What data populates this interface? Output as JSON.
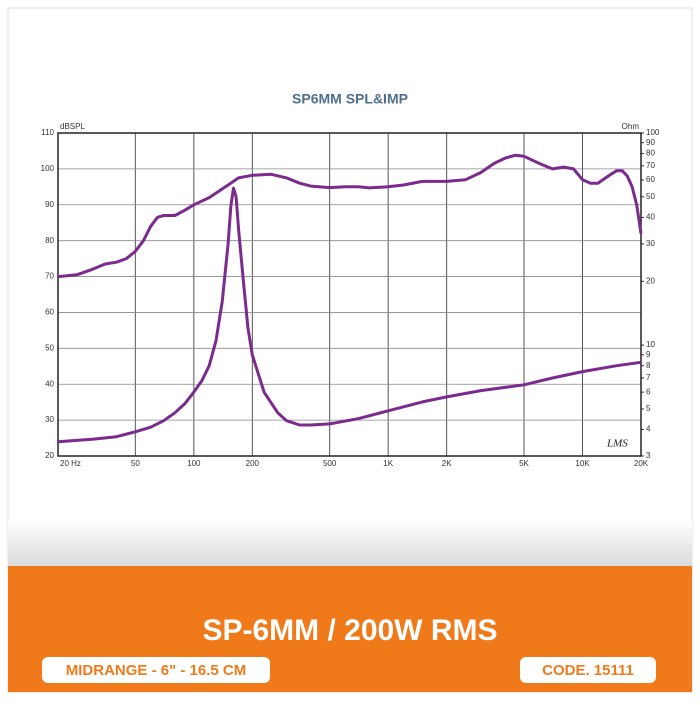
{
  "chart_data": {
    "type": "line",
    "title": "SP6MM SPL&IMP",
    "ylabel": "dBSPL",
    "y2label": "Ohm",
    "annotation": "LMS",
    "xscale": "log",
    "y2scale": "log",
    "grid": true,
    "xlim": [
      20,
      20000
    ],
    "xticks": [
      {
        "value": 20,
        "label": "20 Hz"
      },
      50,
      100,
      200,
      500,
      {
        "value": 1000,
        "label": "1K"
      },
      {
        "value": 2000,
        "label": "2K"
      },
      {
        "value": 5000,
        "label": "5K"
      },
      {
        "value": 10000,
        "label": "10K"
      },
      {
        "value": 20000,
        "label": "20K"
      }
    ],
    "ylim": [
      20,
      110
    ],
    "yticks": [
      20,
      30,
      40,
      50,
      60,
      70,
      80,
      90,
      100,
      110
    ],
    "y2lim": [
      3,
      100
    ],
    "y2ticks": [
      3,
      4,
      5,
      6,
      7,
      8,
      9,
      10,
      20,
      30,
      40,
      50,
      60,
      70,
      80,
      90,
      100
    ],
    "series": [
      {
        "name": "SPL",
        "color": "#7b2a8e",
        "axis": "y",
        "x": [
          20,
          25,
          30,
          35,
          40,
          45,
          50,
          55,
          60,
          65,
          70,
          80,
          90,
          100,
          120,
          150,
          170,
          200,
          250,
          300,
          350,
          400,
          500,
          600,
          700,
          800,
          1000,
          1200,
          1500,
          2000,
          2500,
          3000,
          3500,
          4000,
          4500,
          5000,
          6000,
          7000,
          8000,
          9000,
          10000,
          11000,
          12000,
          14000,
          15000,
          16000,
          17000,
          18000,
          19000,
          20000
        ],
        "values": [
          70,
          70.5,
          72,
          73.5,
          74,
          75,
          77,
          80,
          84,
          86.5,
          87,
          87,
          88.5,
          90,
          92,
          95.5,
          97.5,
          98.2,
          98.5,
          97.5,
          96,
          95.2,
          94.8,
          95,
          95,
          94.7,
          95,
          95.5,
          96.5,
          96.5,
          97,
          99,
          101.5,
          103,
          103.8,
          103.5,
          101.5,
          100,
          100.5,
          100,
          97,
          96,
          96,
          98.5,
          99.5,
          99.5,
          98,
          95,
          90,
          82
        ]
      },
      {
        "name": "Impedance",
        "color": "#7b2a8e",
        "axis": "y2",
        "x": [
          20,
          30,
          40,
          50,
          60,
          70,
          80,
          90,
          100,
          110,
          120,
          130,
          140,
          150,
          155,
          160,
          165,
          170,
          180,
          190,
          200,
          230,
          270,
          300,
          350,
          400,
          500,
          700,
          1000,
          1500,
          2000,
          3000,
          5000,
          7000,
          10000,
          15000,
          20000
        ],
        "values": [
          3.5,
          3.6,
          3.7,
          3.9,
          4.1,
          4.4,
          4.8,
          5.3,
          6.0,
          6.8,
          8,
          10.5,
          16,
          30,
          45,
          55,
          50,
          35,
          20,
          12,
          9,
          6,
          4.8,
          4.4,
          4.2,
          4.2,
          4.25,
          4.5,
          4.9,
          5.4,
          5.7,
          6.1,
          6.5,
          7.0,
          7.5,
          8.0,
          8.3
        ]
      }
    ]
  },
  "banner": {
    "title": "SP-6MM / 200W RMS",
    "subtitle": "MIDRANGE - 6\" - 16.5 CM",
    "code": "CODE. 15111"
  }
}
